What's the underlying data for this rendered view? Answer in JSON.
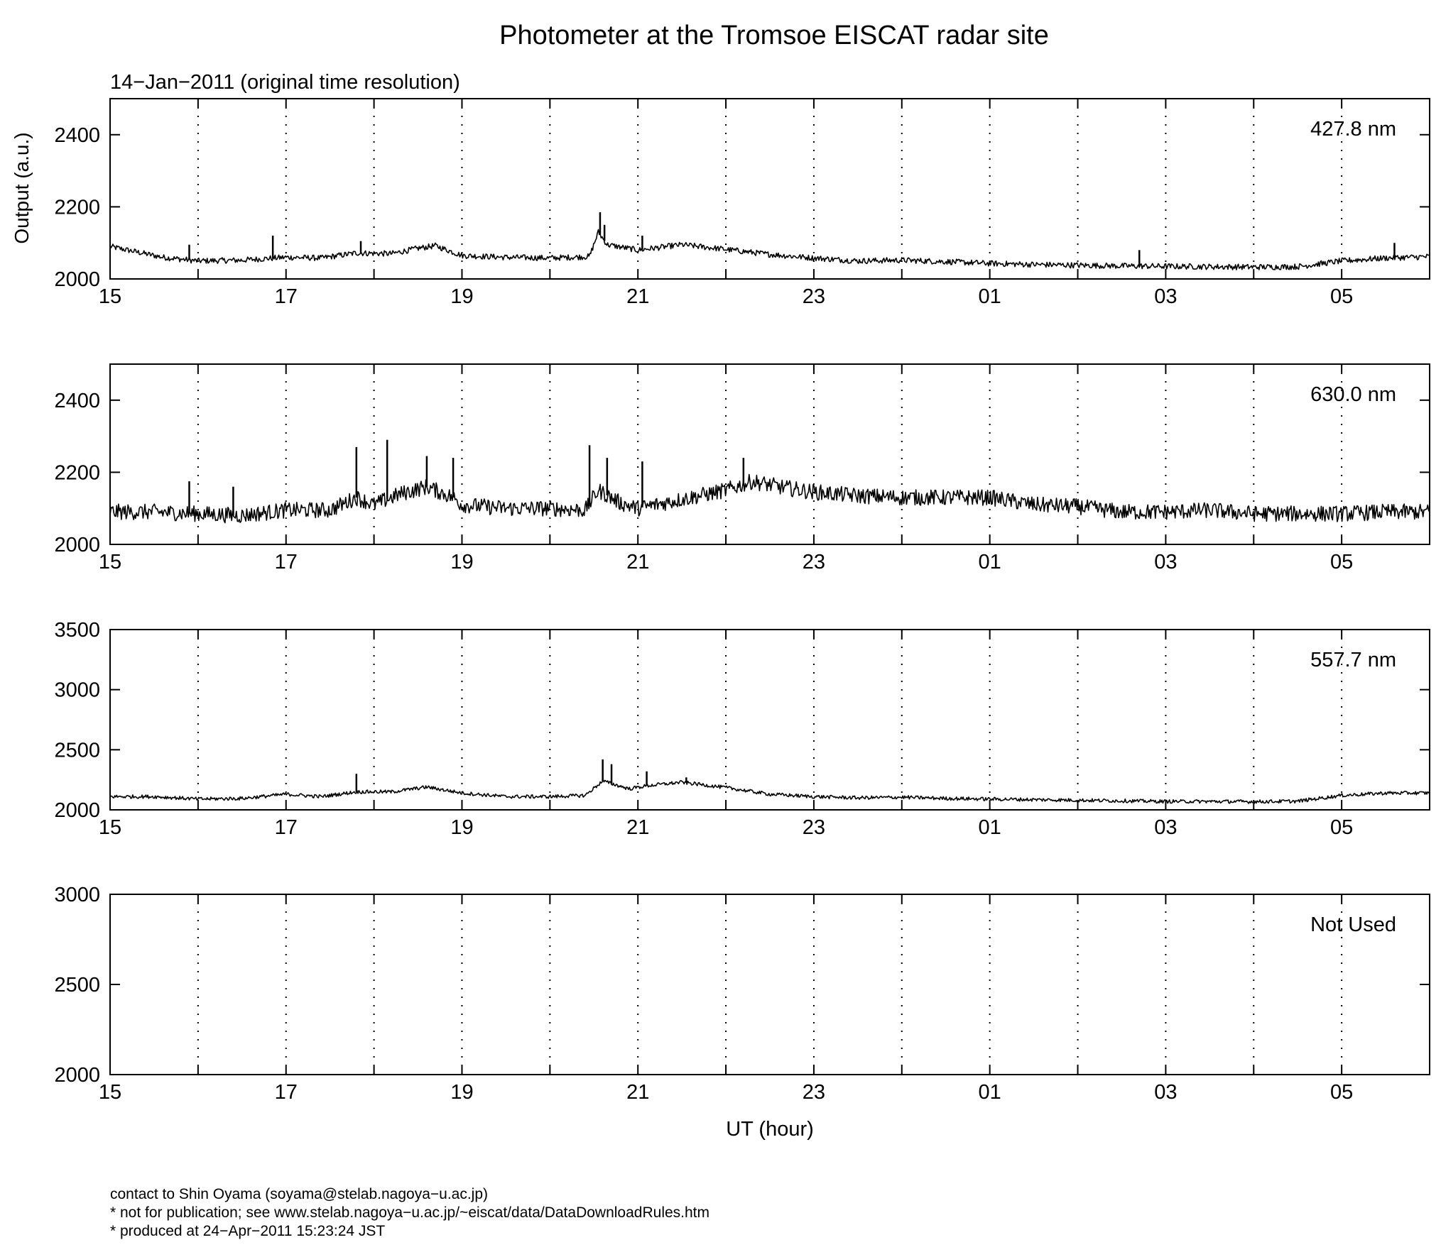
{
  "chart_data": {
    "type": "line",
    "title": "Photometer at the Tromsoe EISCAT radar site",
    "subtitle": "14−Jan−2011 (original time resolution)",
    "ylabel": "Output (a.u.)",
    "xlabel": "UT (hour)",
    "x_range_hours": [
      15,
      30
    ],
    "x_ticks_hours": [
      15,
      17,
      19,
      21,
      23,
      25,
      27,
      29
    ],
    "x_tick_labels": [
      "15",
      "17",
      "19",
      "21",
      "23",
      "01",
      "03",
      "05"
    ],
    "x_dotted_grid_hours": [
      16,
      17,
      18,
      19,
      20,
      21,
      22,
      23,
      24,
      25,
      26,
      27,
      28,
      29
    ],
    "line_color": "#000000",
    "panels": [
      {
        "label": "427.8 nm",
        "ylim": [
          2000,
          2500
        ],
        "y_ticks": [
          2000,
          2200,
          2400
        ],
        "noise": 8,
        "series": [
          [
            15.0,
            2090
          ],
          [
            15.3,
            2075
          ],
          [
            15.6,
            2060
          ],
          [
            16.0,
            2050
          ],
          [
            16.5,
            2052
          ],
          [
            17.0,
            2060
          ],
          [
            17.4,
            2058
          ],
          [
            17.8,
            2072
          ],
          [
            18.2,
            2070
          ],
          [
            18.5,
            2085
          ],
          [
            18.7,
            2092
          ],
          [
            19.0,
            2065
          ],
          [
            19.5,
            2060
          ],
          [
            20.0,
            2058
          ],
          [
            20.45,
            2062
          ],
          [
            20.55,
            2130
          ],
          [
            20.65,
            2095
          ],
          [
            21.0,
            2080
          ],
          [
            21.5,
            2095
          ],
          [
            22.0,
            2082
          ],
          [
            22.5,
            2068
          ],
          [
            23.0,
            2058
          ],
          [
            23.5,
            2050
          ],
          [
            24.0,
            2052
          ],
          [
            24.5,
            2048
          ],
          [
            25.0,
            2043
          ],
          [
            25.5,
            2040
          ],
          [
            26.0,
            2038
          ],
          [
            26.5,
            2036
          ],
          [
            27.0,
            2035
          ],
          [
            27.5,
            2034
          ],
          [
            28.0,
            2033
          ],
          [
            28.5,
            2034
          ],
          [
            29.0,
            2050
          ],
          [
            29.5,
            2058
          ],
          [
            30.0,
            2062
          ]
        ],
        "spikes": [
          [
            15.9,
            2095
          ],
          [
            16.85,
            2120
          ],
          [
            17.85,
            2105
          ],
          [
            20.57,
            2185
          ],
          [
            20.62,
            2150
          ],
          [
            21.05,
            2120
          ],
          [
            26.7,
            2080
          ],
          [
            29.6,
            2100
          ]
        ]
      },
      {
        "label": "630.0 nm",
        "ylim": [
          2000,
          2500
        ],
        "y_ticks": [
          2000,
          2200,
          2400
        ],
        "noise": 22,
        "series": [
          [
            15.0,
            2090
          ],
          [
            15.5,
            2090
          ],
          [
            16.0,
            2085
          ],
          [
            16.5,
            2080
          ],
          [
            17.0,
            2095
          ],
          [
            17.5,
            2095
          ],
          [
            17.8,
            2130
          ],
          [
            18.0,
            2110
          ],
          [
            18.3,
            2140
          ],
          [
            18.6,
            2160
          ],
          [
            18.9,
            2130
          ],
          [
            19.0,
            2110
          ],
          [
            19.5,
            2100
          ],
          [
            20.0,
            2100
          ],
          [
            20.4,
            2095
          ],
          [
            20.55,
            2150
          ],
          [
            20.8,
            2115
          ],
          [
            21.0,
            2100
          ],
          [
            21.5,
            2125
          ],
          [
            22.0,
            2150
          ],
          [
            22.3,
            2175
          ],
          [
            22.6,
            2160
          ],
          [
            23.0,
            2145
          ],
          [
            23.5,
            2135
          ],
          [
            24.0,
            2130
          ],
          [
            24.5,
            2130
          ],
          [
            25.0,
            2130
          ],
          [
            25.5,
            2110
          ],
          [
            26.0,
            2105
          ],
          [
            26.5,
            2090
          ],
          [
            27.0,
            2090
          ],
          [
            27.5,
            2095
          ],
          [
            28.0,
            2085
          ],
          [
            28.5,
            2085
          ],
          [
            29.0,
            2085
          ],
          [
            29.5,
            2090
          ],
          [
            30.0,
            2090
          ]
        ],
        "spikes": [
          [
            15.9,
            2175
          ],
          [
            16.4,
            2160
          ],
          [
            17.8,
            2270
          ],
          [
            18.15,
            2290
          ],
          [
            18.6,
            2245
          ],
          [
            18.9,
            2240
          ],
          [
            20.45,
            2275
          ],
          [
            20.65,
            2240
          ],
          [
            21.05,
            2230
          ],
          [
            22.2,
            2240
          ]
        ]
      },
      {
        "label": "557.7 nm",
        "ylim": [
          2000,
          3500
        ],
        "y_ticks": [
          2000,
          2500,
          3000,
          3500
        ],
        "noise": 15,
        "series": [
          [
            15.0,
            2110
          ],
          [
            15.5,
            2110
          ],
          [
            16.0,
            2090
          ],
          [
            16.5,
            2095
          ],
          [
            17.0,
            2130
          ],
          [
            17.4,
            2110
          ],
          [
            17.8,
            2150
          ],
          [
            18.2,
            2150
          ],
          [
            18.6,
            2190
          ],
          [
            19.0,
            2140
          ],
          [
            19.5,
            2110
          ],
          [
            20.0,
            2110
          ],
          [
            20.4,
            2120
          ],
          [
            20.6,
            2240
          ],
          [
            20.9,
            2175
          ],
          [
            21.1,
            2200
          ],
          [
            21.5,
            2230
          ],
          [
            22.0,
            2185
          ],
          [
            22.5,
            2130
          ],
          [
            23.0,
            2110
          ],
          [
            23.5,
            2100
          ],
          [
            24.0,
            2105
          ],
          [
            24.5,
            2095
          ],
          [
            25.0,
            2090
          ],
          [
            25.5,
            2085
          ],
          [
            26.0,
            2080
          ],
          [
            26.5,
            2075
          ],
          [
            27.0,
            2070
          ],
          [
            27.5,
            2070
          ],
          [
            28.0,
            2068
          ],
          [
            28.5,
            2072
          ],
          [
            29.0,
            2120
          ],
          [
            29.5,
            2140
          ],
          [
            30.0,
            2140
          ]
        ],
        "spikes": [
          [
            17.8,
            2300
          ],
          [
            20.6,
            2420
          ],
          [
            20.7,
            2380
          ],
          [
            21.1,
            2320
          ],
          [
            21.55,
            2270
          ]
        ]
      },
      {
        "label": "Not Used",
        "ylim": [
          2000,
          3000
        ],
        "y_ticks": [
          2000,
          2500,
          3000
        ],
        "noise": 0,
        "series": [],
        "spikes": []
      }
    ]
  },
  "footer": {
    "line1": "contact to Shin Oyama (soyama@stelab.nagoya−u.ac.jp)",
    "line2": "* not for publication; see www.stelab.nagoya−u.ac.jp/~eiscat/data/DataDownloadRules.htm",
    "line3": "* produced at 24−Apr−2011 15:23:24 JST"
  }
}
